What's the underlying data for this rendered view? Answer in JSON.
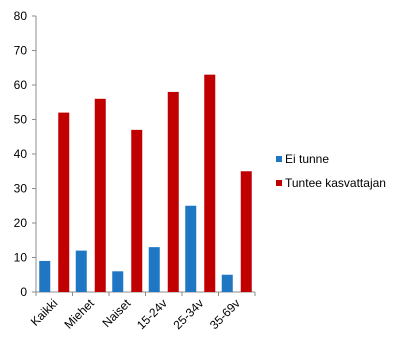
{
  "chart_data": {
    "type": "bar",
    "title": "",
    "xlabel": "",
    "ylabel": "",
    "categories": [
      "Kaikki",
      "Miehet",
      "Naiset",
      "15-24v",
      "25-34v",
      "35-69v"
    ],
    "series": [
      {
        "name": "Ei tunne",
        "color": "#1f77c4",
        "values": [
          9,
          12,
          6,
          13,
          25,
          5
        ]
      },
      {
        "name": "Tuntee kasvattajan",
        "color": "#c00000",
        "values": [
          52,
          56,
          47,
          58,
          63,
          35
        ]
      }
    ],
    "ylim": [
      0,
      80
    ],
    "yticks": [
      0,
      10,
      20,
      30,
      40,
      50,
      60,
      70,
      80
    ],
    "grid": false,
    "legend_position": "right"
  }
}
